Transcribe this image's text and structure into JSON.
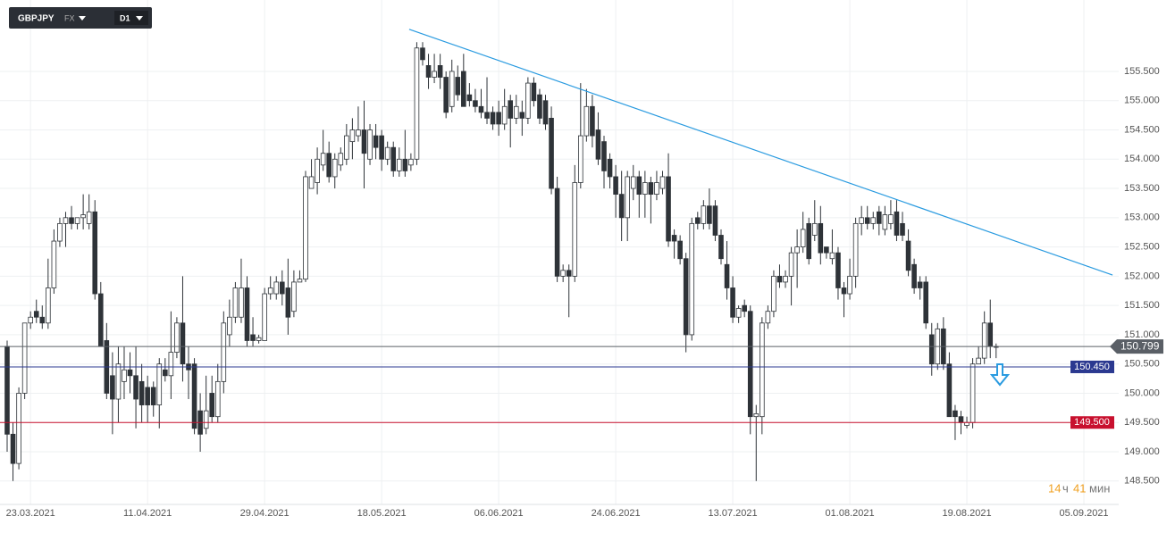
{
  "toolbar": {
    "symbol": "GBPJPY",
    "market": "FX",
    "timeframe": "D1"
  },
  "timer": {
    "hours": 14,
    "hours_unit": "ч",
    "minutes": 41,
    "minutes_unit": "мин"
  },
  "chart_data": {
    "type": "candlestick",
    "open": [
      150.8,
      149.3,
      148.8,
      150.0,
      151.2,
      151.4,
      151.3,
      151.2,
      151.8,
      152.6,
      152.9,
      153.0,
      152.9,
      153.0,
      152.9,
      153.1,
      151.7,
      150.9,
      150.3,
      149.9,
      150.2,
      150.4,
      150.3,
      150.2,
      150.1,
      150.1,
      149.8,
      150.4,
      150.3,
      150.7,
      151.2,
      150.5,
      150.5,
      149.7,
      149.4,
      150.0,
      149.6,
      150.2,
      151.0,
      151.3,
      151.3,
      151.8,
      151.0,
      150.9,
      150.9,
      151.7,
      151.7,
      151.9,
      151.8,
      151.4,
      151.9,
      151.95,
      153.5,
      153.6,
      153.9,
      154.1,
      153.7,
      153.9,
      154.0,
      154.3,
      154.4,
      154.5,
      154.0,
      154.4,
      154.4,
      154.0,
      154.2,
      153.8,
      154.0,
      153.9,
      154.0,
      155.9,
      155.6,
      155.4,
      155.6,
      155.4,
      154.9,
      155.4,
      155.5,
      155.1,
      155.0,
      154.9,
      154.8,
      154.8,
      154.8,
      154.6,
      155.0,
      154.7,
      154.8,
      154.7,
      155.3,
      155.1,
      155.0,
      154.7,
      153.5,
      152.0,
      152.1,
      152.0,
      153.6,
      154.4,
      154.9,
      154.5,
      154.3,
      154.0,
      153.7,
      153.4,
      153.0,
      153.5,
      153.7,
      153.4,
      153.6,
      153.4,
      153.5,
      153.7,
      152.7,
      152.6,
      152.3,
      151.0,
      153.0,
      152.9,
      153.2,
      153.2,
      152.7,
      152.2,
      151.8,
      151.3,
      151.5,
      151.4,
      149.6,
      149.6,
      151.2,
      151.4,
      152.0,
      151.9,
      152.0,
      152.4,
      152.5,
      152.9,
      152.7,
      152.9,
      152.5,
      152.3,
      152.4,
      151.8,
      151.7,
      152.0,
      152.9,
      153.0,
      152.9,
      153.1,
      152.8,
      152.9,
      153.1,
      152.9,
      152.6,
      152.2,
      151.9,
      151.9,
      151.0,
      150.5,
      151.1,
      150.5,
      149.7,
      149.6,
      149.45,
      149.5,
      150.5,
      150.6,
      151.2,
      150.8
    ],
    "high": [
      150.9,
      149.5,
      150.1,
      151.2,
      151.4,
      151.6,
      151.5,
      152.3,
      152.8,
      153.0,
      153.1,
      153.2,
      153.0,
      153.4,
      153.4,
      153.3,
      151.9,
      151.2,
      150.7,
      150.8,
      150.8,
      150.7,
      150.8,
      150.5,
      150.3,
      150.2,
      150.6,
      150.6,
      151.4,
      151.3,
      152.0,
      150.8,
      150.6,
      150.0,
      150.3,
      150.3,
      150.5,
      151.4,
      151.6,
      151.9,
      152.3,
      152.0,
      151.3,
      151.0,
      151.8,
      152.0,
      152.0,
      152.1,
      152.3,
      152.1,
      152.1,
      153.8,
      154.0,
      154.2,
      154.5,
      154.3,
      154.1,
      154.2,
      154.6,
      154.7,
      154.9,
      155.0,
      154.6,
      154.6,
      154.5,
      154.3,
      154.3,
      154.2,
      154.5,
      154.1,
      156.0,
      156.0,
      155.8,
      155.8,
      155.8,
      155.5,
      155.7,
      155.6,
      155.8,
      155.3,
      155.2,
      155.2,
      155.4,
      154.9,
      155.0,
      155.2,
      155.1,
      155.1,
      155.0,
      155.4,
      155.4,
      155.2,
      155.1,
      154.9,
      153.7,
      152.2,
      152.2,
      153.9,
      155.3,
      155.2,
      155.1,
      154.8,
      154.4,
      154.1,
      153.9,
      153.8,
      153.8,
      153.9,
      153.8,
      153.8,
      153.7,
      153.8,
      153.8,
      154.1,
      152.8,
      152.7,
      152.4,
      153.0,
      153.1,
      153.3,
      153.5,
      153.3,
      152.8,
      152.6,
      152.0,
      151.5,
      151.6,
      151.5,
      149.8,
      151.3,
      151.5,
      152.1,
      152.2,
      152.1,
      152.5,
      152.8,
      153.1,
      153.0,
      153.3,
      153.2,
      152.5,
      152.8,
      152.5,
      151.9,
      152.3,
      153.0,
      153.2,
      153.2,
      153.1,
      153.2,
      153.2,
      153.3,
      153.3,
      153.1,
      152.8,
      152.3,
      152.0,
      152.0,
      151.2,
      151.2,
      151.3,
      150.7,
      149.8,
      149.7,
      149.6,
      150.6,
      150.8,
      151.4,
      151.6,
      150.85
    ],
    "low": [
      149.0,
      148.5,
      148.7,
      149.9,
      151.1,
      151.2,
      151.1,
      151.1,
      151.7,
      152.5,
      152.5,
      152.8,
      152.8,
      152.8,
      152.8,
      151.6,
      150.8,
      149.9,
      149.3,
      149.5,
      149.9,
      150.0,
      149.4,
      149.5,
      149.5,
      149.6,
      149.4,
      150.2,
      149.9,
      150.6,
      150.2,
      149.9,
      149.3,
      149.0,
      149.3,
      149.5,
      149.5,
      150.0,
      150.8,
      151.2,
      151.2,
      150.8,
      150.8,
      150.85,
      150.9,
      151.6,
      151.6,
      151.5,
      151.0,
      151.3,
      151.9,
      151.9,
      153.5,
      153.4,
      153.8,
      153.6,
      153.5,
      153.8,
      153.9,
      154.0,
      154.3,
      153.5,
      153.9,
      154.0,
      153.8,
      153.9,
      153.7,
      153.7,
      153.7,
      153.8,
      153.9,
      155.6,
      155.2,
      155.3,
      155.2,
      154.7,
      154.8,
      155.0,
      154.9,
      154.9,
      154.8,
      154.7,
      154.6,
      154.5,
      154.4,
      154.5,
      154.2,
      154.6,
      154.4,
      154.6,
      154.9,
      154.6,
      154.5,
      153.4,
      151.9,
      151.9,
      151.3,
      151.9,
      153.5,
      154.3,
      154.2,
      153.9,
      153.5,
      153.5,
      153.0,
      152.6,
      152.6,
      153.3,
      153.0,
      153.0,
      152.9,
      153.3,
      153.4,
      152.5,
      152.3,
      152.2,
      150.7,
      150.9,
      152.8,
      152.8,
      152.8,
      152.6,
      152.2,
      151.6,
      151.2,
      151.2,
      151.3,
      149.3,
      148.5,
      149.3,
      151.1,
      151.3,
      151.8,
      151.8,
      151.5,
      151.8,
      152.4,
      152.2,
      152.6,
      152.2,
      152.3,
      152.2,
      151.6,
      151.3,
      151.6,
      151.8,
      152.7,
      152.8,
      152.8,
      152.7,
      152.7,
      152.8,
      152.6,
      152.6,
      152.0,
      151.7,
      151.6,
      151.1,
      150.3,
      150.4,
      150.4,
      149.6,
      149.2,
      149.3,
      149.4,
      149.4,
      150.5,
      150.5,
      150.6,
      150.6
    ],
    "close": [
      149.3,
      148.8,
      150.0,
      151.2,
      151.3,
      151.3,
      151.2,
      151.8,
      152.6,
      152.9,
      153.0,
      152.9,
      153.0,
      153.05,
      153.1,
      151.7,
      150.8,
      150.0,
      149.9,
      150.5,
      150.4,
      150.3,
      149.9,
      149.8,
      149.8,
      149.8,
      150.5,
      150.3,
      150.7,
      151.2,
      150.5,
      150.4,
      149.4,
      149.3,
      149.7,
      149.6,
      150.2,
      151.2,
      151.3,
      151.8,
      151.8,
      150.9,
      150.9,
      150.95,
      151.7,
      151.8,
      151.9,
      151.7,
      151.3,
      151.9,
      151.95,
      153.7,
      153.7,
      154.0,
      154.1,
      153.7,
      154.0,
      154.1,
      154.4,
      154.5,
      154.5,
      154.1,
      154.5,
      154.2,
      154.0,
      154.2,
      153.8,
      154.0,
      153.8,
      154.0,
      155.9,
      155.7,
      155.4,
      155.5,
      155.4,
      154.8,
      155.5,
      155.1,
      154.9,
      155.0,
      154.9,
      154.8,
      154.7,
      154.6,
      154.6,
      154.9,
      154.7,
      154.9,
      154.7,
      155.3,
      155.0,
      154.7,
      154.6,
      153.5,
      152.0,
      152.1,
      152.0,
      153.6,
      154.4,
      154.9,
      154.4,
      154.0,
      153.8,
      153.7,
      153.4,
      153.0,
      153.7,
      153.7,
      153.4,
      153.6,
      153.4,
      153.6,
      153.7,
      152.6,
      152.6,
      152.3,
      151.0,
      152.9,
      152.9,
      153.2,
      152.9,
      152.7,
      152.3,
      151.8,
      151.3,
      151.45,
      151.4,
      149.6,
      149.65,
      151.2,
      151.4,
      152.0,
      151.9,
      152.0,
      152.4,
      152.5,
      152.8,
      152.3,
      152.9,
      152.4,
      152.4,
      152.4,
      151.8,
      151.7,
      152.0,
      152.9,
      153.0,
      152.9,
      153.0,
      152.9,
      153.05,
      153.05,
      152.7,
      152.7,
      152.1,
      151.8,
      151.8,
      151.2,
      150.5,
      151.1,
      150.5,
      149.6,
      149.6,
      149.5,
      149.5,
      150.5,
      150.6,
      151.2,
      150.8,
      150.799
    ],
    "up_color": "#ffffff",
    "down_color": "#2e3338",
    "xlim": [
      -1.22,
      189.95
    ],
    "xticks": [
      {
        "value": 4,
        "label": "23.03.2021"
      },
      {
        "value": 24,
        "label": "11.04.2021"
      },
      {
        "value": 44,
        "label": "29.04.2021"
      },
      {
        "value": 64,
        "label": "18.05.2021"
      },
      {
        "value": 84,
        "label": "06.06.2021"
      },
      {
        "value": 104,
        "label": "24.06.2021"
      },
      {
        "value": 124,
        "label": "13.07.2021"
      },
      {
        "value": 144,
        "label": "01.08.2021"
      },
      {
        "value": 164,
        "label": "19.08.2021"
      },
      {
        "value": 184,
        "label": "05.09.2021"
      }
    ],
    "ylim": [
      148.1,
      156.72
    ],
    "yticks": [
      {
        "value": 148.5,
        "label": "148.500"
      },
      {
        "value": 149,
        "label": "149.000"
      },
      {
        "value": 149.5,
        "label": "149.500"
      },
      {
        "value": 150,
        "label": "150.000"
      },
      {
        "value": 150.5,
        "label": "150.500"
      },
      {
        "value": 151,
        "label": "151.000"
      },
      {
        "value": 151.5,
        "label": "151.500"
      },
      {
        "value": 152,
        "label": "152.000"
      },
      {
        "value": 152.5,
        "label": "152.500"
      },
      {
        "value": 153,
        "label": "153.000"
      },
      {
        "value": 153.5,
        "label": "153.500"
      },
      {
        "value": 154,
        "label": "154.000"
      },
      {
        "value": 154.5,
        "label": "154.500"
      },
      {
        "value": 155,
        "label": "155.000"
      },
      {
        "value": 155.5,
        "label": "155.500"
      }
    ],
    "grid": true,
    "trendline": {
      "x": [
        68.7,
        188.9
      ],
      "y": [
        156.22,
        152.02
      ],
      "color": "#2a9be0"
    },
    "current_price": {
      "value": 150.799,
      "label": "150.799",
      "color": "#5a5f66"
    },
    "levels": [
      {
        "value": 150.45,
        "label": "150.450",
        "color": "#2b3990"
      },
      {
        "value": 149.5,
        "label": "149.500",
        "color": "#c8102e"
      }
    ]
  }
}
